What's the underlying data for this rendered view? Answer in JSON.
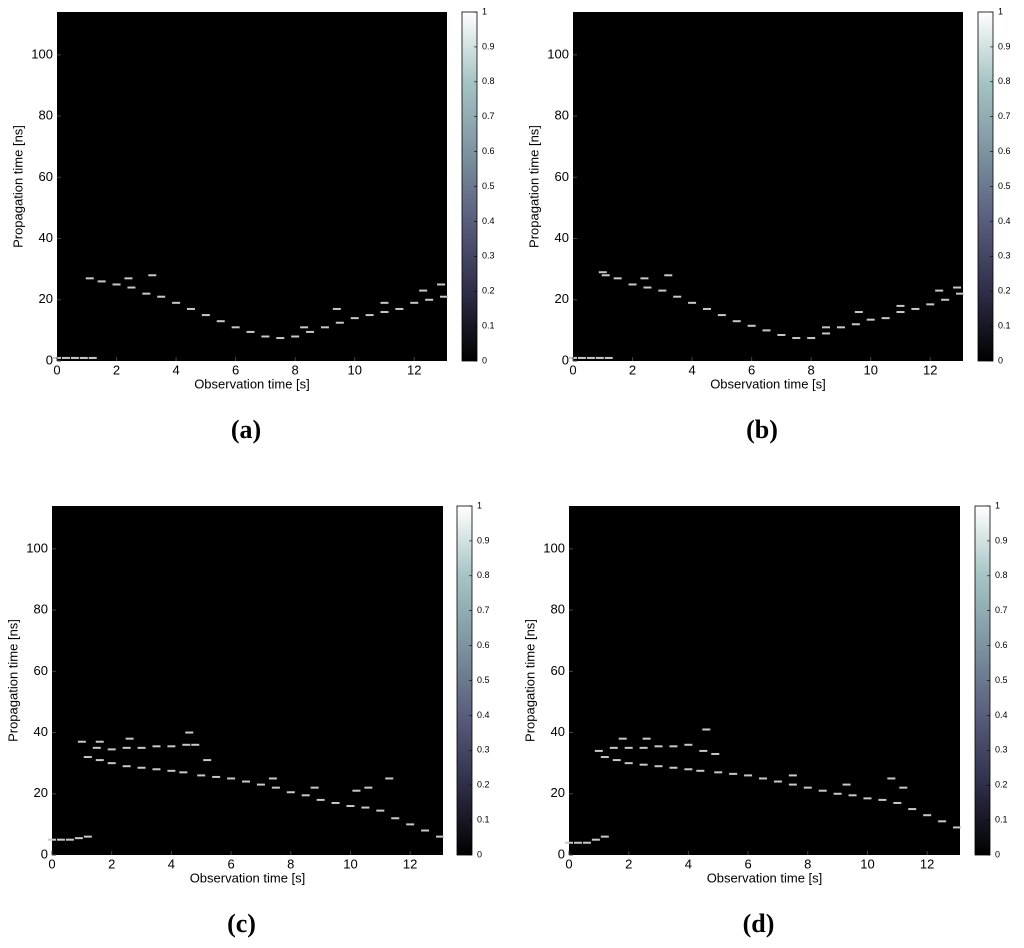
{
  "chart_data": [
    {
      "type": "heatmap",
      "label": "(a)",
      "xlabel": "Observation time [s]",
      "ylabel": "Propagation time [ns]",
      "xlim": [
        0,
        13.1
      ],
      "ylim": [
        0,
        114
      ],
      "xticks": [
        0,
        2,
        4,
        6,
        8,
        10,
        12
      ],
      "yticks": [
        0,
        20,
        40,
        60,
        80,
        100
      ],
      "colorbar_lim": [
        0,
        1
      ],
      "colorbar_ticks": [
        0,
        0.1,
        0.2,
        0.3,
        0.4,
        0.5,
        0.6,
        0.7,
        0.8,
        0.9,
        1
      ],
      "colormap": "bone",
      "color": "#c8c8c8",
      "x": [
        0,
        0.3,
        0.6,
        0.9,
        1.2,
        1.1,
        1.5,
        2,
        2.5,
        3,
        3.5,
        4,
        4.5,
        5,
        5.5,
        6,
        6.5,
        7,
        7.5,
        8,
        8.5,
        9,
        9.5,
        10,
        10.5,
        11,
        11.5,
        12,
        12.5,
        13,
        2.4,
        3.2,
        8.3,
        9.4,
        11.0,
        12.3,
        12.9
      ],
      "y": [
        1,
        1,
        1,
        1,
        1,
        27,
        26,
        25,
        24,
        22,
        21,
        19,
        17,
        15,
        13,
        11,
        9.5,
        8,
        7.5,
        8,
        9.5,
        11,
        12.5,
        14,
        15,
        16,
        17,
        19,
        20,
        21,
        27,
        28,
        11,
        17,
        19,
        23,
        25
      ]
    },
    {
      "type": "heatmap",
      "label": "(b)",
      "xlabel": "Observation time [s]",
      "ylabel": "Propagation time [ns]",
      "xlim": [
        0,
        13.1
      ],
      "ylim": [
        0,
        114
      ],
      "xticks": [
        0,
        2,
        4,
        6,
        8,
        10,
        12
      ],
      "yticks": [
        0,
        20,
        40,
        60,
        80,
        100
      ],
      "colorbar_lim": [
        0,
        1
      ],
      "colorbar_ticks": [
        0,
        0.1,
        0.2,
        0.3,
        0.4,
        0.5,
        0.6,
        0.7,
        0.8,
        0.9,
        1
      ],
      "colormap": "bone",
      "color": "#c8c8c8",
      "x": [
        0,
        0.3,
        0.6,
        0.9,
        1.2,
        1.1,
        1.5,
        2,
        2.5,
        3,
        3.5,
        4,
        4.5,
        5,
        5.5,
        6,
        6.5,
        7,
        7.5,
        8,
        8.5,
        9,
        9.5,
        10,
        10.5,
        11,
        11.5,
        12,
        12.5,
        13,
        1.0,
        2.4,
        3.2,
        8.5,
        9.6,
        11.0,
        12.3,
        12.9
      ],
      "y": [
        1,
        1,
        1,
        1,
        1,
        28,
        27,
        25,
        24,
        23,
        21,
        19,
        17,
        15,
        13,
        11.5,
        10,
        8.5,
        7.5,
        7.5,
        9,
        11,
        12,
        13.5,
        14,
        16,
        17,
        18.5,
        20,
        22,
        29,
        27,
        28,
        11,
        16,
        18,
        23,
        24
      ]
    },
    {
      "type": "heatmap",
      "label": "(c)",
      "xlabel": "Observation time [s]",
      "ylabel": "Propagation time [ns]",
      "xlim": [
        0,
        13.1
      ],
      "ylim": [
        0,
        114
      ],
      "xticks": [
        0,
        2,
        4,
        6,
        8,
        10,
        12
      ],
      "yticks": [
        0,
        20,
        40,
        60,
        80,
        100
      ],
      "colorbar_lim": [
        0,
        1
      ],
      "colorbar_ticks": [
        0,
        0.1,
        0.2,
        0.3,
        0.4,
        0.5,
        0.6,
        0.7,
        0.8,
        0.9,
        1
      ],
      "colormap": "bone",
      "color": "#c8c8c8",
      "x": [
        0,
        0.3,
        0.6,
        0.9,
        1.2,
        1.2,
        1.6,
        2,
        2.5,
        3,
        3.5,
        4,
        4.4,
        1.5,
        2,
        2.5,
        3,
        3.5,
        4,
        4.5,
        4.8,
        5,
        5.5,
        6,
        6.5,
        7,
        7.5,
        8,
        8.5,
        9,
        9.5,
        10,
        10.5,
        11,
        11.5,
        12,
        12.5,
        13,
        1.0,
        1.6,
        2.6,
        4.6,
        5.2,
        7.4,
        8.8,
        10.2,
        10.6,
        11.3
      ],
      "y": [
        5,
        5,
        5,
        5.5,
        6,
        32,
        31,
        30,
        29,
        28.5,
        28,
        27.5,
        27,
        35,
        34.5,
        35,
        35,
        35.5,
        35.5,
        36,
        36,
        26,
        25.5,
        25,
        24,
        23,
        22,
        20.5,
        19.5,
        18,
        17,
        16,
        15.5,
        14.5,
        12,
        10,
        8,
        6,
        37,
        37,
        38,
        40,
        31,
        25,
        22,
        21,
        22,
        25
      ]
    },
    {
      "type": "heatmap",
      "label": "(d)",
      "xlabel": "Observation time [s]",
      "ylabel": "Propagation time [ns]",
      "xlim": [
        0,
        13.1
      ],
      "ylim": [
        0,
        114
      ],
      "xticks": [
        0,
        2,
        4,
        6,
        8,
        10,
        12
      ],
      "yticks": [
        0,
        20,
        40,
        60,
        80,
        100
      ],
      "colorbar_lim": [
        0,
        1
      ],
      "colorbar_ticks": [
        0,
        0.1,
        0.2,
        0.3,
        0.4,
        0.5,
        0.6,
        0.7,
        0.8,
        0.9,
        1
      ],
      "colormap": "bone",
      "color": "#c8c8c8",
      "x": [
        0,
        0.3,
        0.6,
        0.9,
        1.2,
        1.2,
        1.6,
        2,
        2.5,
        3,
        3.5,
        4,
        4.4,
        1.5,
        2,
        2.5,
        3,
        3.5,
        4,
        4.5,
        5,
        5.5,
        6,
        6.5,
        7,
        7.5,
        8,
        8.5,
        9,
        9.5,
        10,
        10.5,
        11,
        11.5,
        12,
        12.5,
        13,
        1.0,
        1.8,
        2.6,
        4.6,
        4.9,
        7.5,
        9.3,
        10.8,
        11.2
      ],
      "y": [
        4,
        4,
        4,
        5,
        6,
        32,
        31,
        30,
        29.5,
        29,
        28.5,
        28,
        27.5,
        35,
        35,
        35,
        35.5,
        35.5,
        36,
        34,
        27,
        26.5,
        26,
        25,
        24,
        23,
        22,
        21,
        20,
        19.5,
        18.5,
        18,
        17,
        15,
        13,
        11,
        9,
        34,
        38,
        38,
        41,
        33,
        26,
        23,
        25,
        22
      ]
    }
  ]
}
